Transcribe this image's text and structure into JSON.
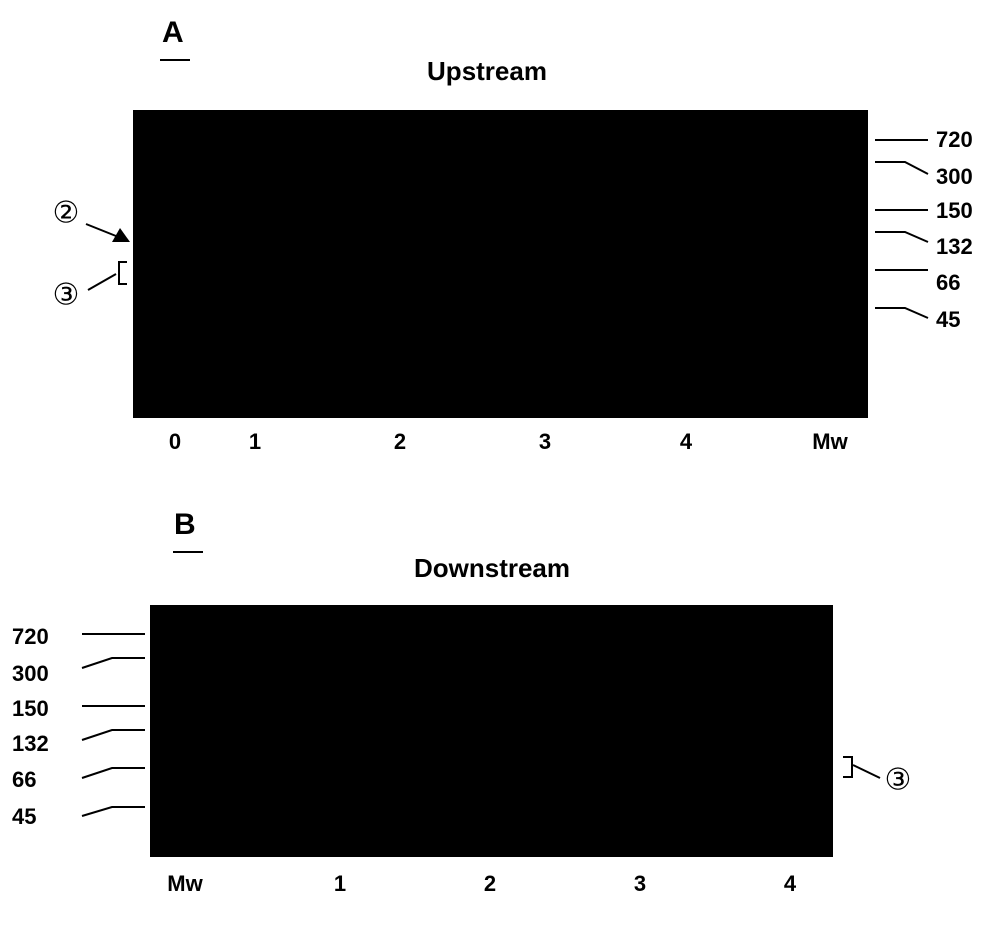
{
  "panels": [
    {
      "label": "A",
      "title": "Upstream",
      "lanes": [
        "0",
        "1",
        "2",
        "3",
        "4",
        "Mw"
      ],
      "markers": [
        "720",
        "300",
        "150",
        "132",
        "66",
        "45"
      ],
      "annotations": [
        "②",
        "③"
      ]
    },
    {
      "label": "B",
      "title": "Downstream",
      "lanes": [
        "Mw",
        "1",
        "2",
        "3",
        "4"
      ],
      "markers": [
        "720",
        "300",
        "150",
        "132",
        "66",
        "45"
      ],
      "annotations": [
        "③"
      ]
    }
  ]
}
